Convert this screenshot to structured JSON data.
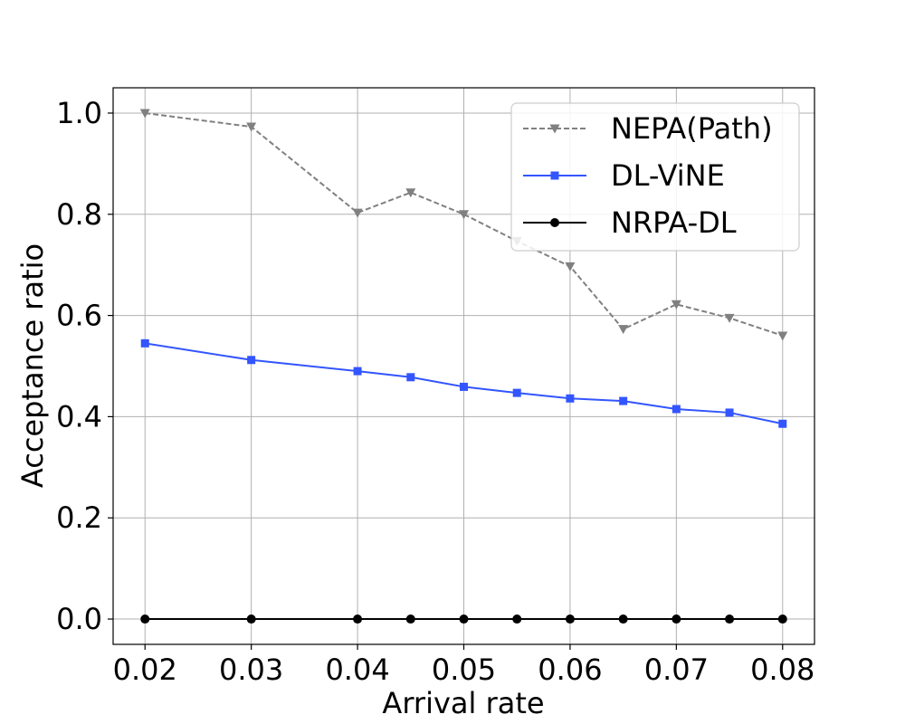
{
  "chart_data": {
    "type": "line",
    "title": "",
    "xlabel": "Arrival rate",
    "ylabel": "Acceptance ratio",
    "xlim": [
      0.017,
      0.083
    ],
    "ylim": [
      -0.05,
      1.05
    ],
    "x": [
      0.02,
      0.03,
      0.04,
      0.045,
      0.05,
      0.055,
      0.06,
      0.065,
      0.07,
      0.075,
      0.08
    ],
    "x_ticks": [
      0.02,
      0.03,
      0.04,
      0.05,
      0.06,
      0.07,
      0.08
    ],
    "x_tick_labels": [
      "0.02",
      "0.03",
      "0.04",
      "0.05",
      "0.06",
      "0.07",
      "0.08"
    ],
    "y_ticks": [
      0.0,
      0.2,
      0.4,
      0.6,
      0.8,
      1.0
    ],
    "y_tick_labels": [
      "0.0",
      "0.2",
      "0.4",
      "0.6",
      "0.8",
      "1.0"
    ],
    "grid": true,
    "legend_position": "top-right",
    "series": [
      {
        "name": "NEPA(Path)",
        "color": "#808080",
        "line_style": "dashed",
        "marker": "triangle-down",
        "values": [
          1.0,
          0.973,
          0.803,
          0.843,
          0.8,
          0.747,
          0.697,
          0.573,
          0.622,
          0.595,
          0.56
        ]
      },
      {
        "name": "DL-ViNE",
        "color": "#3355ff",
        "line_style": "solid",
        "marker": "square",
        "values": [
          0.545,
          0.512,
          0.49,
          0.478,
          0.459,
          0.447,
          0.436,
          0.431,
          0.415,
          0.408,
          0.386
        ]
      },
      {
        "name": "NRPA-DL",
        "color": "#000000",
        "line_style": "solid",
        "marker": "circle",
        "values": [
          0.0,
          0.0,
          0.0,
          0.0,
          0.0,
          0.0,
          0.0,
          0.0,
          0.0,
          0.0,
          0.0
        ]
      }
    ]
  }
}
